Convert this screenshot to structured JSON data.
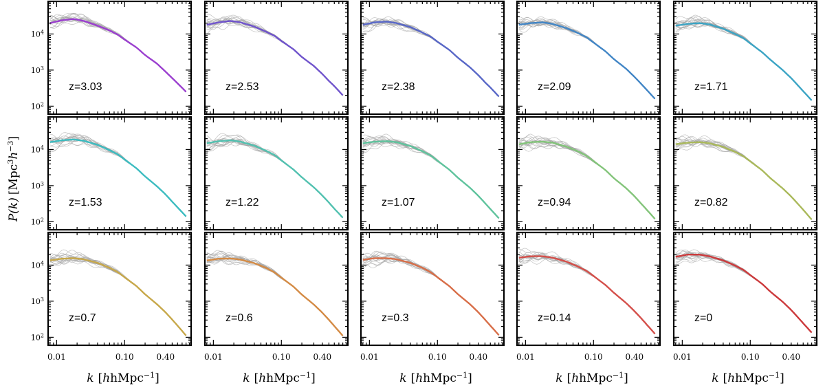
{
  "chart_data": {
    "type": "line",
    "layout": "3x5 grid of panels",
    "xscale": "log",
    "yscale": "log",
    "xlabel_var": "k",
    "xlabel_unit": "hMpc",
    "xlabel_exp": "−1",
    "ylabel_var": "P(k)",
    "ylabel_unit_a": "Mpc",
    "ylabel_exp_a": "3",
    "ylabel_unit_b": "h",
    "ylabel_exp_b": "−3",
    "xlim": [
      0.0075,
      0.95
    ],
    "ylim": [
      60,
      80000
    ],
    "xticks": [
      {
        "value": 0.01,
        "label": "0.01"
      },
      {
        "value": 0.1,
        "label": "0.10"
      },
      {
        "value": 0.4,
        "label": "0.40"
      }
    ],
    "yticks": [
      {
        "value": 100,
        "base": "10",
        "exp": "2"
      },
      {
        "value": 1000,
        "base": "10",
        "exp": "3"
      },
      {
        "value": 10000,
        "base": "10",
        "exp": "4"
      }
    ],
    "k_max": 0.8,
    "n_realisations": 18,
    "realisation_color": "#9c9c9c",
    "panels": [
      {
        "label": "z=3.03",
        "color": "#9b3fcf",
        "shape": [
          [
            0.008,
            20000
          ],
          [
            0.012,
            24000
          ],
          [
            0.018,
            26000
          ],
          [
            0.025,
            23000
          ],
          [
            0.04,
            17000
          ],
          [
            0.06,
            12500
          ],
          [
            0.08,
            9500
          ],
          [
            0.1,
            7000
          ],
          [
            0.15,
            4200
          ],
          [
            0.2,
            2600
          ],
          [
            0.3,
            1500
          ],
          [
            0.4,
            900
          ],
          [
            0.5,
            600
          ],
          [
            0.6,
            430
          ],
          [
            0.8,
            250
          ]
        ]
      },
      {
        "label": "z=2.53",
        "color": "#7054cc",
        "shape": [
          [
            0.008,
            18000
          ],
          [
            0.012,
            21000
          ],
          [
            0.018,
            23000
          ],
          [
            0.025,
            21000
          ],
          [
            0.04,
            16000
          ],
          [
            0.06,
            11500
          ],
          [
            0.08,
            8800
          ],
          [
            0.1,
            6400
          ],
          [
            0.15,
            3800
          ],
          [
            0.2,
            2300
          ],
          [
            0.3,
            1300
          ],
          [
            0.4,
            780
          ],
          [
            0.5,
            500
          ],
          [
            0.6,
            360
          ],
          [
            0.8,
            200
          ]
        ]
      },
      {
        "label": "z=2.38",
        "color": "#5867c7",
        "shape": [
          [
            0.008,
            18000
          ],
          [
            0.012,
            21000
          ],
          [
            0.018,
            22000
          ],
          [
            0.025,
            20000
          ],
          [
            0.04,
            15500
          ],
          [
            0.06,
            11000
          ],
          [
            0.08,
            8400
          ],
          [
            0.1,
            6100
          ],
          [
            0.15,
            3600
          ],
          [
            0.2,
            2200
          ],
          [
            0.3,
            1200
          ],
          [
            0.4,
            720
          ],
          [
            0.5,
            460
          ],
          [
            0.6,
            330
          ],
          [
            0.8,
            185
          ]
        ]
      },
      {
        "label": "z=2.09",
        "color": "#4286c6",
        "shape": [
          [
            0.008,
            18000
          ],
          [
            0.012,
            20000
          ],
          [
            0.018,
            21000
          ],
          [
            0.025,
            19000
          ],
          [
            0.04,
            14500
          ],
          [
            0.06,
            10500
          ],
          [
            0.08,
            8000
          ],
          [
            0.1,
            5800
          ],
          [
            0.15,
            3300
          ],
          [
            0.2,
            2000
          ],
          [
            0.3,
            1100
          ],
          [
            0.4,
            650
          ],
          [
            0.5,
            420
          ],
          [
            0.6,
            290
          ],
          [
            0.8,
            160
          ]
        ]
      },
      {
        "label": "z=1.71",
        "color": "#3ba4c4",
        "shape": [
          [
            0.008,
            17000
          ],
          [
            0.012,
            19000
          ],
          [
            0.018,
            20000
          ],
          [
            0.025,
            18500
          ],
          [
            0.04,
            14000
          ],
          [
            0.06,
            10000
          ],
          [
            0.08,
            7600
          ],
          [
            0.1,
            5500
          ],
          [
            0.15,
            3100
          ],
          [
            0.2,
            1900
          ],
          [
            0.3,
            1000
          ],
          [
            0.4,
            600
          ],
          [
            0.5,
            380
          ],
          [
            0.6,
            260
          ],
          [
            0.8,
            145
          ]
        ]
      },
      {
        "label": "z=1.53",
        "color": "#3cbcc0",
        "shape": [
          [
            0.008,
            16000
          ],
          [
            0.012,
            18000
          ],
          [
            0.018,
            19000
          ],
          [
            0.025,
            17500
          ],
          [
            0.04,
            13500
          ],
          [
            0.06,
            9600
          ],
          [
            0.08,
            7300
          ],
          [
            0.1,
            5300
          ],
          [
            0.15,
            3000
          ],
          [
            0.2,
            1800
          ],
          [
            0.3,
            950
          ],
          [
            0.4,
            570
          ],
          [
            0.5,
            360
          ],
          [
            0.6,
            250
          ],
          [
            0.8,
            140
          ]
        ]
      },
      {
        "label": "z=1.22",
        "color": "#52c1b0",
        "shape": [
          [
            0.008,
            15000
          ],
          [
            0.012,
            17000
          ],
          [
            0.018,
            18000
          ],
          [
            0.025,
            16500
          ],
          [
            0.04,
            12800
          ],
          [
            0.06,
            9200
          ],
          [
            0.08,
            7000
          ],
          [
            0.1,
            5000
          ],
          [
            0.15,
            2800
          ],
          [
            0.2,
            1700
          ],
          [
            0.3,
            900
          ],
          [
            0.4,
            530
          ],
          [
            0.5,
            340
          ],
          [
            0.6,
            230
          ],
          [
            0.8,
            130
          ]
        ]
      },
      {
        "label": "z=1.07",
        "color": "#5fc39d",
        "shape": [
          [
            0.008,
            15000
          ],
          [
            0.012,
            16500
          ],
          [
            0.018,
            17000
          ],
          [
            0.025,
            16000
          ],
          [
            0.04,
            12500
          ],
          [
            0.06,
            9000
          ],
          [
            0.08,
            6800
          ],
          [
            0.1,
            4900
          ],
          [
            0.15,
            2750
          ],
          [
            0.2,
            1650
          ],
          [
            0.3,
            880
          ],
          [
            0.4,
            520
          ],
          [
            0.5,
            330
          ],
          [
            0.6,
            225
          ],
          [
            0.8,
            125
          ]
        ]
      },
      {
        "label": "z=0.94",
        "color": "#83c47a",
        "shape": [
          [
            0.008,
            14000
          ],
          [
            0.012,
            16000
          ],
          [
            0.018,
            16500
          ],
          [
            0.025,
            15500
          ],
          [
            0.04,
            12000
          ],
          [
            0.06,
            8800
          ],
          [
            0.08,
            6600
          ],
          [
            0.1,
            4800
          ],
          [
            0.15,
            2700
          ],
          [
            0.2,
            1600
          ],
          [
            0.3,
            860
          ],
          [
            0.4,
            510
          ],
          [
            0.5,
            320
          ],
          [
            0.6,
            220
          ],
          [
            0.8,
            120
          ]
        ]
      },
      {
        "label": "z=0.82",
        "color": "#aab95b",
        "shape": [
          [
            0.008,
            14000
          ],
          [
            0.012,
            15500
          ],
          [
            0.018,
            16000
          ],
          [
            0.025,
            15000
          ],
          [
            0.04,
            11800
          ],
          [
            0.06,
            8600
          ],
          [
            0.08,
            6500
          ],
          [
            0.1,
            4700
          ],
          [
            0.15,
            2650
          ],
          [
            0.2,
            1580
          ],
          [
            0.3,
            840
          ],
          [
            0.4,
            500
          ],
          [
            0.5,
            315
          ],
          [
            0.6,
            215
          ],
          [
            0.8,
            115
          ]
        ]
      },
      {
        "label": "z=0.7",
        "color": "#c7a84a",
        "shape": [
          [
            0.008,
            13500
          ],
          [
            0.012,
            15000
          ],
          [
            0.018,
            15500
          ],
          [
            0.025,
            14500
          ],
          [
            0.04,
            11500
          ],
          [
            0.06,
            8400
          ],
          [
            0.08,
            6300
          ],
          [
            0.1,
            4600
          ],
          [
            0.15,
            2600
          ],
          [
            0.2,
            1550
          ],
          [
            0.3,
            820
          ],
          [
            0.4,
            490
          ],
          [
            0.5,
            310
          ],
          [
            0.6,
            210
          ],
          [
            0.8,
            112
          ]
        ]
      },
      {
        "label": "z=0.6",
        "color": "#d48b45",
        "shape": [
          [
            0.008,
            13500
          ],
          [
            0.012,
            15000
          ],
          [
            0.018,
            15200
          ],
          [
            0.025,
            14200
          ],
          [
            0.04,
            11300
          ],
          [
            0.06,
            8300
          ],
          [
            0.08,
            6200
          ],
          [
            0.1,
            4500
          ],
          [
            0.15,
            2550
          ],
          [
            0.2,
            1520
          ],
          [
            0.3,
            810
          ],
          [
            0.4,
            480
          ],
          [
            0.5,
            305
          ],
          [
            0.6,
            205
          ],
          [
            0.8,
            110
          ]
        ]
      },
      {
        "label": "z=0.3",
        "color": "#d86e48",
        "shape": [
          [
            0.008,
            14000
          ],
          [
            0.012,
            15500
          ],
          [
            0.018,
            15500
          ],
          [
            0.025,
            14500
          ],
          [
            0.04,
            11500
          ],
          [
            0.06,
            8400
          ],
          [
            0.08,
            6300
          ],
          [
            0.1,
            4600
          ],
          [
            0.15,
            2600
          ],
          [
            0.2,
            1560
          ],
          [
            0.3,
            830
          ],
          [
            0.4,
            490
          ],
          [
            0.5,
            310
          ],
          [
            0.6,
            210
          ],
          [
            0.8,
            115
          ]
        ]
      },
      {
        "label": "z=0.14",
        "color": "#d44f4a",
        "shape": [
          [
            0.008,
            16000
          ],
          [
            0.012,
            17500
          ],
          [
            0.018,
            17500
          ],
          [
            0.025,
            16000
          ],
          [
            0.04,
            12500
          ],
          [
            0.06,
            9000
          ],
          [
            0.08,
            6800
          ],
          [
            0.1,
            5000
          ],
          [
            0.15,
            2800
          ],
          [
            0.2,
            1700
          ],
          [
            0.3,
            900
          ],
          [
            0.4,
            530
          ],
          [
            0.5,
            340
          ],
          [
            0.6,
            230
          ],
          [
            0.8,
            125
          ]
        ]
      },
      {
        "label": "z=0",
        "color": "#cc3a3c",
        "shape": [
          [
            0.008,
            17000
          ],
          [
            0.012,
            19500
          ],
          [
            0.018,
            19500
          ],
          [
            0.025,
            17500
          ],
          [
            0.04,
            13500
          ],
          [
            0.06,
            9700
          ],
          [
            0.08,
            7300
          ],
          [
            0.1,
            5300
          ],
          [
            0.15,
            3000
          ],
          [
            0.2,
            1800
          ],
          [
            0.3,
            960
          ],
          [
            0.4,
            570
          ],
          [
            0.5,
            360
          ],
          [
            0.6,
            245
          ],
          [
            0.8,
            135
          ]
        ]
      }
    ]
  }
}
